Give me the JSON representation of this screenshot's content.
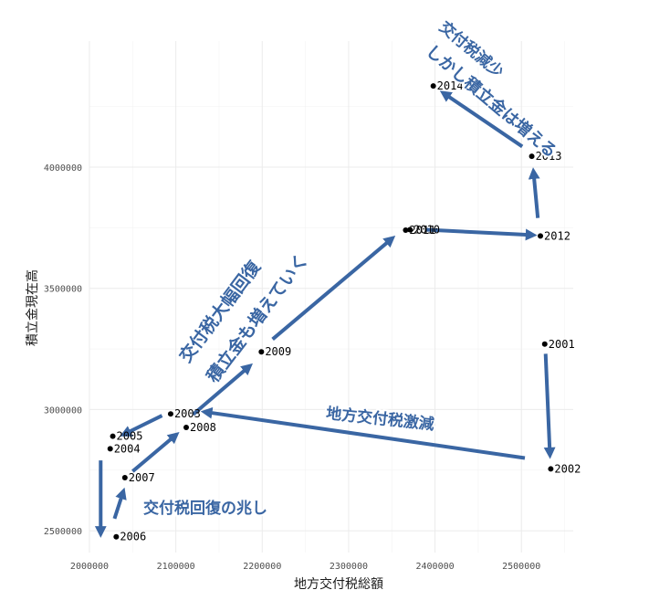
{
  "colors": {
    "arrow": "#3a66a3",
    "point": "#000000",
    "grid": "#ebebeb"
  },
  "chart_data": {
    "type": "scatter",
    "xlabel": "地方交付税総額",
    "ylabel": "積立金現在高",
    "xlim": [
      2000000,
      2560000
    ],
    "ylim": [
      2410000,
      4520000
    ],
    "x_ticks": [
      2000000,
      2100000,
      2200000,
      2300000,
      2400000,
      2500000
    ],
    "x_tick_labels": [
      "2000000",
      "2100000",
      "2200000",
      "2300000",
      "2400000",
      "2500000"
    ],
    "y_ticks": [
      2500000,
      3000000,
      3500000,
      4000000
    ],
    "y_tick_labels": [
      "2500000",
      "3000000",
      "3500000",
      "4000000"
    ],
    "grid": true,
    "points": [
      {
        "label": "2001",
        "x": 2527000,
        "y": 3270000
      },
      {
        "label": "2002",
        "x": 2534000,
        "y": 2755000
      },
      {
        "label": "2003",
        "x": 2094000,
        "y": 2982000
      },
      {
        "label": "2004",
        "x": 2024000,
        "y": 2838000
      },
      {
        "label": "2005",
        "x": 2027000,
        "y": 2890000
      },
      {
        "label": "2006",
        "x": 2031000,
        "y": 2475000
      },
      {
        "label": "2007",
        "x": 2041000,
        "y": 2719000
      },
      {
        "label": "2008",
        "x": 2112000,
        "y": 2926000
      },
      {
        "label": "2009",
        "x": 2199000,
        "y": 3238000
      },
      {
        "label": "2010",
        "x": 2371000,
        "y": 3742000
      },
      {
        "label": "2011",
        "x": 2366000,
        "y": 3740000
      },
      {
        "label": "2012",
        "x": 2522000,
        "y": 3716000
      },
      {
        "label": "2013",
        "x": 2512000,
        "y": 4045000
      },
      {
        "label": "2014",
        "x": 2398000,
        "y": 4335000
      }
    ],
    "annotations": [
      {
        "text": "地方交付税激減"
      },
      {
        "text": "交付税回復の兆し"
      },
      {
        "text": "交付税大幅回復"
      },
      {
        "text": "積立金も増えていく"
      },
      {
        "text": "交付税減少"
      },
      {
        "text": "しかし積立金は増える"
      }
    ]
  }
}
